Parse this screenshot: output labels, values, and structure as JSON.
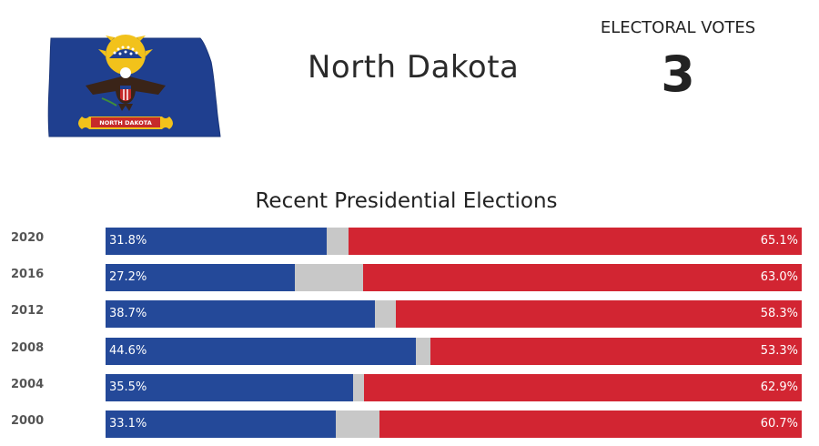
{
  "header": {
    "state_name": "North Dakota",
    "electoral_label": "ELECTORAL VOTES",
    "electoral_value": "3"
  },
  "flag": {
    "motto": "NORTH DAKOTA",
    "field_color": "#1f3f8f",
    "accent_color": "#f2c21b"
  },
  "colors": {
    "dem": "#244999",
    "rep": "#d22532",
    "other": "#c8c8c8"
  },
  "chart_data": {
    "type": "bar",
    "orientation": "horizontal",
    "stacked": true,
    "title": "Recent Presidential Elections",
    "categories": [
      "2020",
      "2016",
      "2012",
      "2008",
      "2004",
      "2000"
    ],
    "series": [
      {
        "values": [
          31.8,
          27.2,
          38.7,
          44.6,
          35.5,
          33.1
        ],
        "labels": [
          "31.8%",
          "27.2%",
          "38.7%",
          "44.6%",
          "35.5%",
          "33.1%"
        ]
      },
      {
        "values": [
          3.1,
          9.8,
          3.0,
          2.1,
          1.6,
          6.2
        ]
      },
      {
        "values": [
          65.1,
          63.0,
          58.3,
          53.3,
          62.9,
          60.7
        ],
        "labels": [
          "65.1%",
          "63.0%",
          "58.3%",
          "53.3%",
          "62.9%",
          "60.7%"
        ]
      }
    ],
    "xlim": [
      0,
      100
    ]
  }
}
